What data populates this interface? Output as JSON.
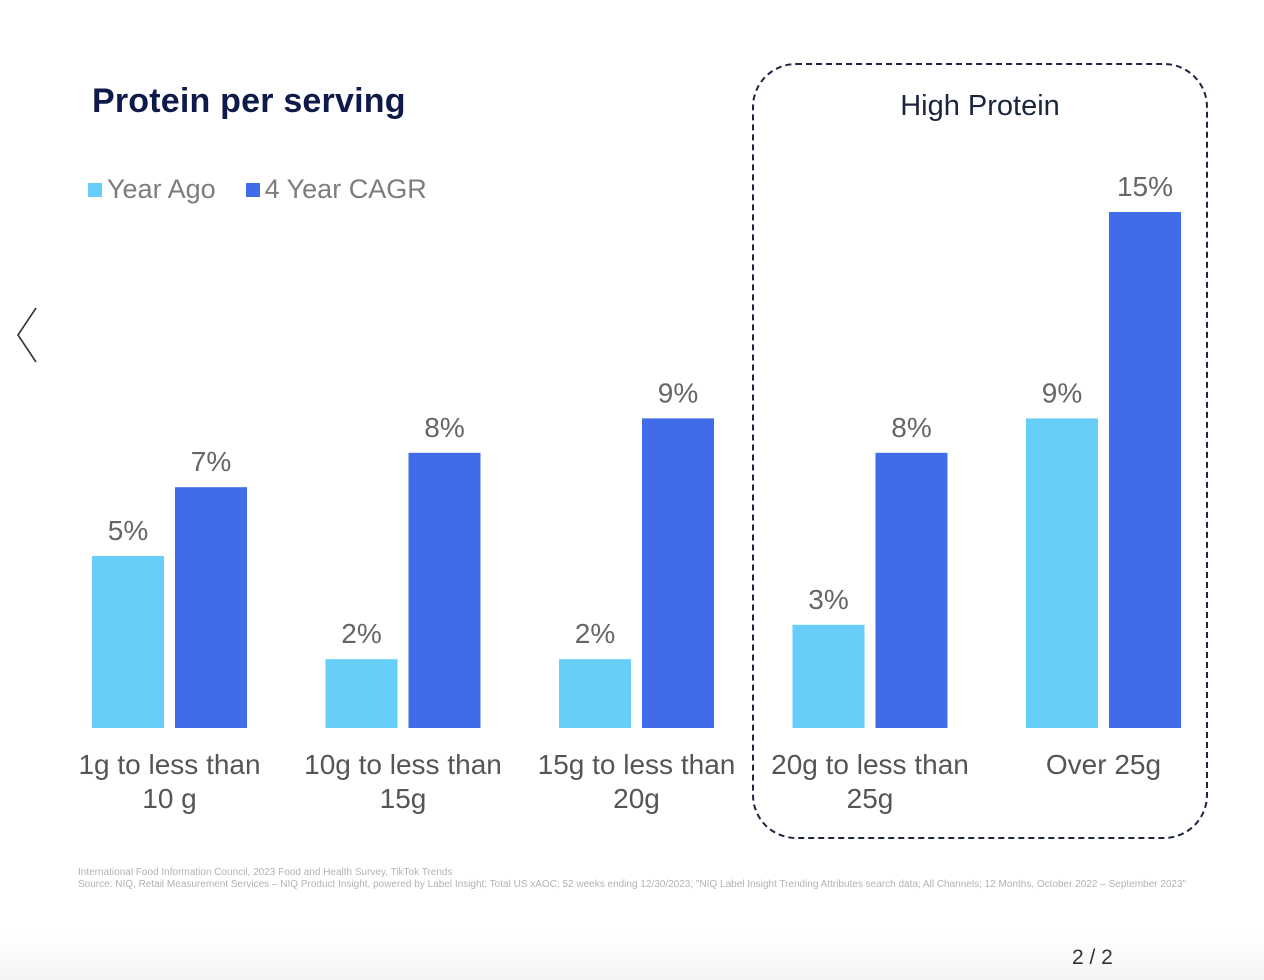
{
  "chart_data": {
    "type": "bar",
    "title": "Protein per serving",
    "categories": [
      "1g to less than 10 g",
      "10g to less than 15g",
      "15g to less than 20g",
      "20g to less than 25g",
      "Over 25g"
    ],
    "series": [
      {
        "name": "Year Ago",
        "color": "#66cef8",
        "values": [
          5,
          2,
          2,
          3,
          9
        ],
        "labels": [
          "5%",
          "2%",
          "2%",
          "3%",
          "9%"
        ]
      },
      {
        "name": "4 Year CAGR",
        "color": "#406be9",
        "values": [
          7,
          8,
          9,
          8,
          15
        ],
        "labels": [
          "7%",
          "8%",
          "9%",
          "8%",
          "15%"
        ]
      }
    ],
    "ylim": [
      0,
      15
    ],
    "grid": false,
    "legend_position": "top-left",
    "annotation": "High Protein"
  },
  "source_lines": [
    "International Food Information Council, 2023 Food and Health Survey, TikTok Trends",
    "Source: NIQ, Retail Measurement Services – NIQ Product Insight, powered by Label Insight; Total US xAOC; 52 weeks ending 12/30/2023; \"NIQ Label Insight Trending Attributes search data; All Channels; 12 Months, October 2022 – September 2023\""
  ],
  "pager": "2 / 2",
  "nav": {
    "prev_icon": "chevron-left-icon"
  }
}
